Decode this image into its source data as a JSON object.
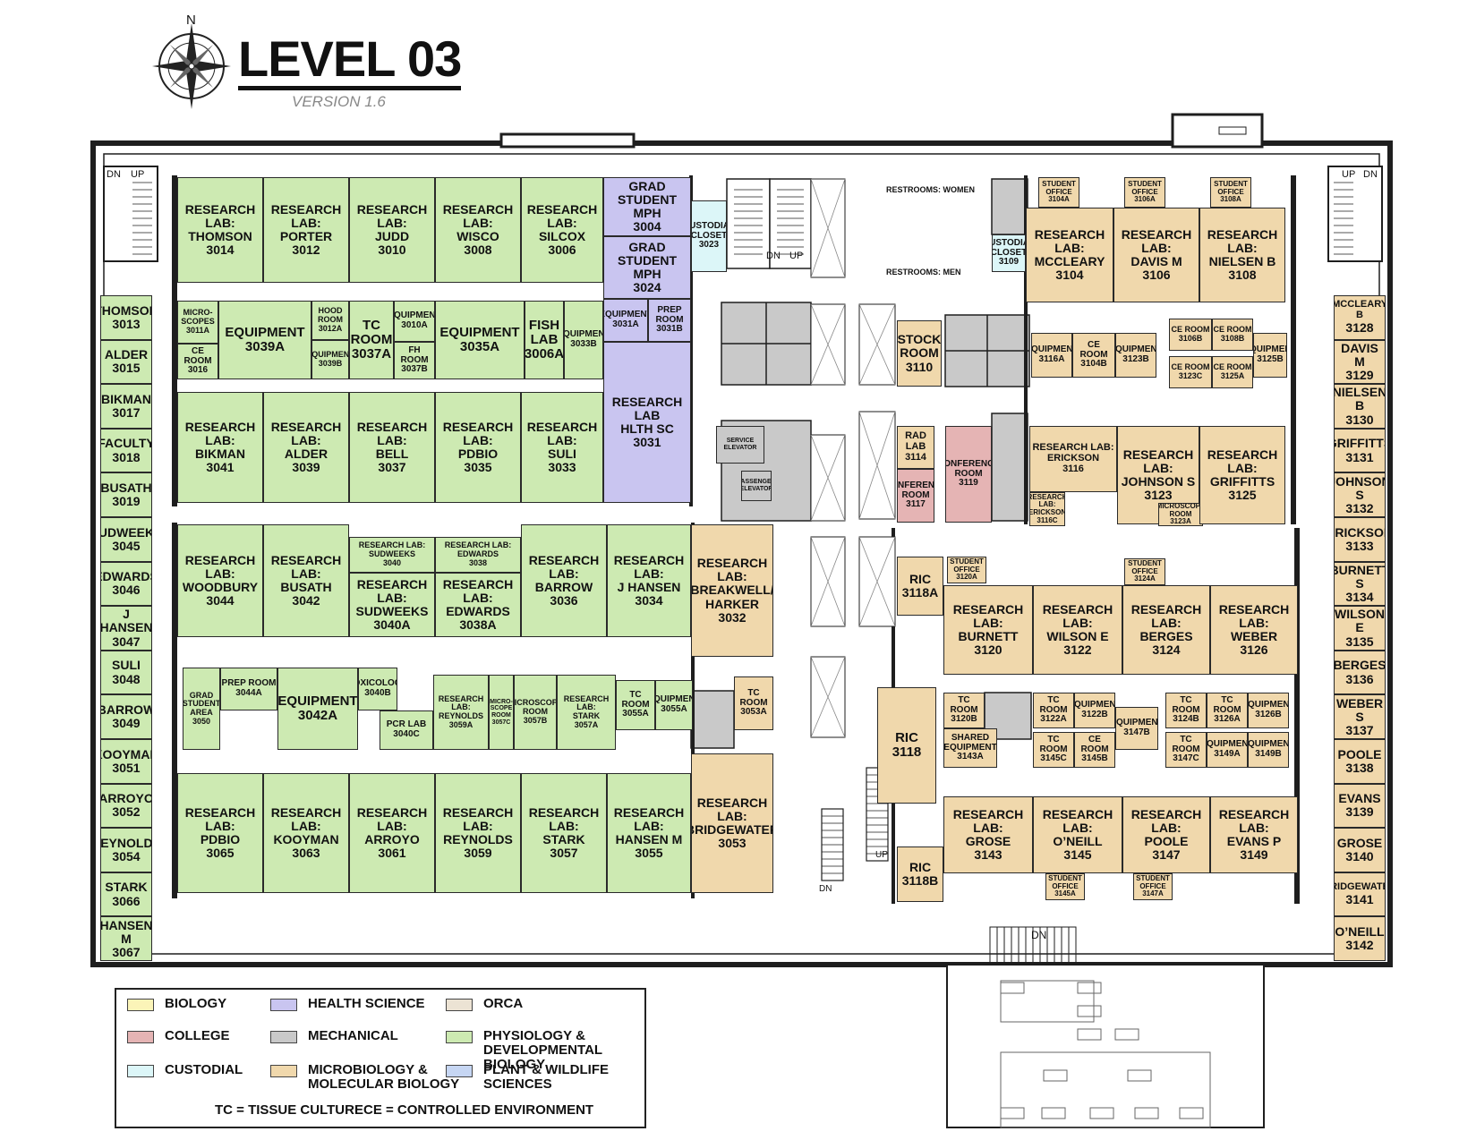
{
  "map": {
    "title": "LEVEL 03",
    "version": "VERSION 1.6",
    "north": "N"
  },
  "colors": {
    "physiology": "#cdeab2",
    "health_science": "#c9c5f0",
    "microbiology": "#f0d8ac",
    "college": "#e5b4b4",
    "mechanical": "#c9c9c9",
    "custodial": "#dcf6f8",
    "biology": "#fbf4b8",
    "orca": "#ece3d4",
    "plant": "#c6d6f3",
    "wall": "#1e1e1e",
    "corridor": "#ffffff"
  },
  "rooms": [
    {
      "id": "r3014",
      "lines": [
        "RESEARCH LAB:",
        "THOMSON",
        "3014"
      ],
      "c": "physiology"
    },
    {
      "id": "r3012",
      "lines": [
        "RESEARCH LAB:",
        "PORTER",
        "3012"
      ],
      "c": "physiology"
    },
    {
      "id": "r3010",
      "lines": [
        "RESEARCH LAB:",
        "JUDD",
        "3010"
      ],
      "c": "physiology"
    },
    {
      "id": "r3008",
      "lines": [
        "RESEARCH LAB:",
        "WISCO",
        "3008"
      ],
      "c": "physiology"
    },
    {
      "id": "r3006",
      "lines": [
        "RESEARCH LAB:",
        "SILCOX",
        "3006"
      ],
      "c": "physiology"
    },
    {
      "id": "r3004",
      "lines": [
        "GRAD STUDENT",
        "MPH",
        "3004"
      ],
      "c": "health_science"
    },
    {
      "id": "r3024",
      "lines": [
        "GRAD STUDENT",
        "MPH",
        "3024"
      ],
      "c": "health_science"
    },
    {
      "id": "r3023",
      "lines": [
        "CUSTODIAL",
        "CLOSET",
        "3023"
      ],
      "c": "custodial"
    },
    {
      "id": "r3011a",
      "lines": [
        "MICRO-",
        "SCOPES",
        "3011A"
      ],
      "c": "physiology"
    },
    {
      "id": "r3016",
      "lines": [
        "CE ROOM",
        "3016"
      ],
      "c": "physiology"
    },
    {
      "id": "r3039a",
      "lines": [
        "EQUIPMENT",
        "3039A"
      ],
      "c": "physiology"
    },
    {
      "id": "r3012a",
      "lines": [
        "HOOD",
        "ROOM",
        "3012A"
      ],
      "c": "physiology"
    },
    {
      "id": "r3039b",
      "lines": [
        "EQUIPMENT",
        "3039B"
      ],
      "c": "physiology"
    },
    {
      "id": "r3037a",
      "lines": [
        "TC",
        "ROOM",
        "3037A"
      ],
      "c": "physiology"
    },
    {
      "id": "r3010a",
      "lines": [
        "EQUIPMENT",
        "3010A"
      ],
      "c": "physiology"
    },
    {
      "id": "r3037b",
      "lines": [
        "FH ROOM",
        "3037B"
      ],
      "c": "physiology"
    },
    {
      "id": "r3035a",
      "lines": [
        "EQUIPMENT",
        "3035A"
      ],
      "c": "physiology"
    },
    {
      "id": "r3006a",
      "lines": [
        "FISH",
        "LAB",
        "3006A"
      ],
      "c": "physiology"
    },
    {
      "id": "r3033b",
      "lines": [
        "EQUIPMENT",
        "3033B"
      ],
      "c": "physiology"
    },
    {
      "id": "r3031a",
      "lines": [
        "EQUIPMENT",
        "3031A"
      ],
      "c": "health_science"
    },
    {
      "id": "r3031b",
      "lines": [
        "PREP ROOM",
        "3031B"
      ],
      "c": "health_science"
    },
    {
      "id": "r3031",
      "lines": [
        "RESEARCH LAB",
        "HLTH SC",
        "3031"
      ],
      "c": "health_science"
    },
    {
      "id": "r3041",
      "lines": [
        "RESEARCH LAB:",
        "BIKMAN",
        "3041"
      ],
      "c": "physiology"
    },
    {
      "id": "r3039",
      "lines": [
        "RESEARCH LAB:",
        "ALDER",
        "3039"
      ],
      "c": "physiology"
    },
    {
      "id": "r3037",
      "lines": [
        "RESEARCH LAB:",
        "BELL",
        "3037"
      ],
      "c": "physiology"
    },
    {
      "id": "r3035",
      "lines": [
        "RESEARCH LAB:",
        "PDBIO",
        "3035"
      ],
      "c": "physiology"
    },
    {
      "id": "r3033",
      "lines": [
        "RESEARCH LAB:",
        "SULI",
        "3033"
      ],
      "c": "physiology"
    },
    {
      "id": "svc_elev",
      "lines": [
        "SERVICE",
        "ELEVATOR"
      ],
      "c": "mechanical"
    },
    {
      "id": "pass_elev",
      "lines": [
        "PASSENGER",
        "ELEVATOR"
      ],
      "c": "mechanical"
    },
    {
      "id": "r3044",
      "lines": [
        "RESEARCH LAB:",
        "WOODBURY",
        "3044"
      ],
      "c": "physiology"
    },
    {
      "id": "r3042",
      "lines": [
        "RESEARCH LAB:",
        "BUSATH",
        "3042"
      ],
      "c": "physiology"
    },
    {
      "id": "r3040",
      "lines": [
        "RESEARCH LAB:",
        "SUDWEEKS",
        "3040"
      ],
      "c": "physiology"
    },
    {
      "id": "r3038",
      "lines": [
        "RESEARCH LAB:",
        "EDWARDS",
        "3038"
      ],
      "c": "physiology"
    },
    {
      "id": "r3040a",
      "lines": [
        "RESEARCH LAB:",
        "SUDWEEKS",
        "3040A"
      ],
      "c": "physiology"
    },
    {
      "id": "r3038a",
      "lines": [
        "RESEARCH LAB:",
        "EDWARDS",
        "3038A"
      ],
      "c": "physiology"
    },
    {
      "id": "r3036",
      "lines": [
        "RESEARCH LAB:",
        "BARROW",
        "3036"
      ],
      "c": "physiology"
    },
    {
      "id": "r3034",
      "lines": [
        "RESEARCH LAB:",
        "J HANSEN",
        "3034"
      ],
      "c": "physiology"
    },
    {
      "id": "r3032",
      "lines": [
        "RESEARCH LAB:",
        "BREAKWELL/",
        "HARKER",
        "3032"
      ],
      "c": "microbiology"
    },
    {
      "id": "r3050",
      "lines": [
        "GRAD",
        "STUDENT",
        "AREA",
        "3050"
      ],
      "c": "physiology"
    },
    {
      "id": "r3044a",
      "lines": [
        "PREP ROOM",
        "3044A"
      ],
      "c": "physiology"
    },
    {
      "id": "r3042a",
      "lines": [
        "EQUIPMENT",
        "3042A"
      ],
      "c": "physiology"
    },
    {
      "id": "r3040b",
      "lines": [
        "TOXICOLOGY",
        "3040B"
      ],
      "c": "physiology"
    },
    {
      "id": "r3040c",
      "lines": [
        "PCR LAB",
        "3040C"
      ],
      "c": "physiology"
    },
    {
      "id": "r3059a",
      "lines": [
        "RESEARCH LAB:",
        "REYNOLDS",
        "3059A"
      ],
      "c": "physiology"
    },
    {
      "id": "r3057c",
      "lines": [
        "MICRO-",
        "SCOPE",
        "ROOM",
        "3057C"
      ],
      "c": "physiology"
    },
    {
      "id": "r3057b",
      "lines": [
        "MICROSCOPE",
        "ROOM",
        "3057B"
      ],
      "c": "physiology"
    },
    {
      "id": "r3057a",
      "lines": [
        "RESEARCH LAB:",
        "STARK",
        "3057A"
      ],
      "c": "physiology"
    },
    {
      "id": "r3055a1",
      "lines": [
        "TC ROOM",
        "3055A"
      ],
      "c": "physiology"
    },
    {
      "id": "r3055a2",
      "lines": [
        "EQUIPMENT",
        "3055A"
      ],
      "c": "physiology"
    },
    {
      "id": "r3053a",
      "lines": [
        "TC ROOM",
        "3053A"
      ],
      "c": "microbiology"
    },
    {
      "id": "r3065",
      "lines": [
        "RESEARCH LAB:",
        "PDBIO",
        "3065"
      ],
      "c": "physiology"
    },
    {
      "id": "r3063",
      "lines": [
        "RESEARCH LAB:",
        "KOOYMAN",
        "3063"
      ],
      "c": "physiology"
    },
    {
      "id": "r3061",
      "lines": [
        "RESEARCH LAB:",
        "ARROYO",
        "3061"
      ],
      "c": "physiology"
    },
    {
      "id": "r3059",
      "lines": [
        "RESEARCH LAB:",
        "REYNOLDS",
        "3059"
      ],
      "c": "physiology"
    },
    {
      "id": "r3057",
      "lines": [
        "RESEARCH LAB:",
        "STARK",
        "3057"
      ],
      "c": "physiology"
    },
    {
      "id": "r3055",
      "lines": [
        "RESEARCH LAB:",
        "HANSEN M",
        "3055"
      ],
      "c": "physiology"
    },
    {
      "id": "r3053",
      "lines": [
        "RESEARCH LAB:",
        "BRIDGEWATER",
        "3053"
      ],
      "c": "microbiology"
    },
    {
      "id": "rest_women",
      "lines": [
        "RESTROOMS: WOMEN"
      ],
      "c": "corridor"
    },
    {
      "id": "rest_men",
      "lines": [
        "RESTROOMS: MEN"
      ],
      "c": "corridor"
    },
    {
      "id": "r3109",
      "lines": [
        "CUSTODIAL",
        "CLOSET",
        "3109"
      ],
      "c": "custodial"
    },
    {
      "id": "r3104a",
      "lines": [
        "STUDENT",
        "OFFICE",
        "3104A"
      ],
      "c": "microbiology"
    },
    {
      "id": "r3106a",
      "lines": [
        "STUDENT",
        "OFFICE",
        "3106A"
      ],
      "c": "microbiology"
    },
    {
      "id": "r3108a",
      "lines": [
        "STUDENT",
        "OFFICE",
        "3108A"
      ],
      "c": "microbiology"
    },
    {
      "id": "r3104",
      "lines": [
        "RESEARCH LAB:",
        "MCCLEARY",
        "3104"
      ],
      "c": "microbiology"
    },
    {
      "id": "r3106",
      "lines": [
        "RESEARCH LAB:",
        "DAVIS M",
        "3106"
      ],
      "c": "microbiology"
    },
    {
      "id": "r3108",
      "lines": [
        "RESEARCH LAB:",
        "NIELSEN B",
        "3108"
      ],
      "c": "microbiology"
    },
    {
      "id": "r3110",
      "lines": [
        "STOCK",
        "ROOM",
        "3110"
      ],
      "c": "microbiology"
    },
    {
      "id": "r3116a",
      "lines": [
        "EQUIPMENT",
        "3116A"
      ],
      "c": "microbiology"
    },
    {
      "id": "r3104b",
      "lines": [
        "CE ROOM",
        "3104B"
      ],
      "c": "microbiology"
    },
    {
      "id": "r3123b",
      "lines": [
        "EQUIPMENT",
        "3123B"
      ],
      "c": "microbiology"
    },
    {
      "id": "r3106b",
      "lines": [
        "CE ROOM",
        "3106B"
      ],
      "c": "microbiology"
    },
    {
      "id": "r3108b",
      "lines": [
        "CE ROOM",
        "3108B"
      ],
      "c": "microbiology"
    },
    {
      "id": "r3123c",
      "lines": [
        "CE ROOM",
        "3123C"
      ],
      "c": "microbiology"
    },
    {
      "id": "r3125a",
      "lines": [
        "CE ROOM",
        "3125A"
      ],
      "c": "microbiology"
    },
    {
      "id": "r3125b",
      "lines": [
        "EQUIPMENT",
        "3125B"
      ],
      "c": "microbiology"
    },
    {
      "id": "r3114",
      "lines": [
        "RAD LAB",
        "3114"
      ],
      "c": "microbiology"
    },
    {
      "id": "r3117",
      "lines": [
        "CONFERENCE",
        "ROOM",
        "3117"
      ],
      "c": "college"
    },
    {
      "id": "r3119",
      "lines": [
        "CONFERENCE",
        "ROOM",
        "3119"
      ],
      "c": "college"
    },
    {
      "id": "r3116",
      "lines": [
        "RESEARCH LAB:",
        "ERICKSON",
        "3116"
      ],
      "c": "microbiology"
    },
    {
      "id": "r3116c",
      "lines": [
        "RESEARCH LAB:",
        "ERICKSON",
        "3116C"
      ],
      "c": "microbiology"
    },
    {
      "id": "r3123",
      "lines": [
        "RESEARCH LAB:",
        "JOHNSON S",
        "3123"
      ],
      "c": "microbiology"
    },
    {
      "id": "r3123a",
      "lines": [
        "MICROSCOPE",
        "ROOM",
        "3123A"
      ],
      "c": "microbiology"
    },
    {
      "id": "r3125",
      "lines": [
        "RESEARCH LAB:",
        "GRIFFITTS",
        "3125"
      ],
      "c": "microbiology"
    },
    {
      "id": "r3118a",
      "lines": [
        "RIC",
        "3118A"
      ],
      "c": "microbiology"
    },
    {
      "id": "r3120a",
      "lines": [
        "STUDENT",
        "OFFICE",
        "3120A"
      ],
      "c": "microbiology"
    },
    {
      "id": "r3124a",
      "lines": [
        "STUDENT",
        "OFFICE",
        "3124A"
      ],
      "c": "microbiology"
    },
    {
      "id": "r3120",
      "lines": [
        "RESEARCH LAB:",
        "BURNETT",
        "3120"
      ],
      "c": "microbiology"
    },
    {
      "id": "r3122",
      "lines": [
        "RESEARCH LAB:",
        "WILSON E",
        "3122"
      ],
      "c": "microbiology"
    },
    {
      "id": "r3124",
      "lines": [
        "RESEARCH LAB:",
        "BERGES",
        "3124"
      ],
      "c": "microbiology"
    },
    {
      "id": "r3126",
      "lines": [
        "RESEARCH LAB:",
        "WEBER",
        "3126"
      ],
      "c": "microbiology"
    },
    {
      "id": "r3118",
      "lines": [
        "RIC",
        "3118"
      ],
      "c": "microbiology"
    },
    {
      "id": "r3120b",
      "lines": [
        "TC ROOM",
        "3120B"
      ],
      "c": "microbiology"
    },
    {
      "id": "r3143a",
      "lines": [
        "SHARED",
        "EQUIPMENT",
        "3143A"
      ],
      "c": "microbiology"
    },
    {
      "id": "r3122a",
      "lines": [
        "TC ROOM",
        "3122A"
      ],
      "c": "microbiology"
    },
    {
      "id": "r3122b",
      "lines": [
        "EQUIPMENT",
        "3122B"
      ],
      "c": "microbiology"
    },
    {
      "id": "r3147b",
      "lines": [
        "EQUIPMENT",
        "3147B"
      ],
      "c": "microbiology"
    },
    {
      "id": "r3124b",
      "lines": [
        "TC ROOM",
        "3124B"
      ],
      "c": "microbiology"
    },
    {
      "id": "r3126a",
      "lines": [
        "TC ROOM",
        "3126A"
      ],
      "c": "microbiology"
    },
    {
      "id": "r3126b",
      "lines": [
        "EQUIPMENT",
        "3126B"
      ],
      "c": "microbiology"
    },
    {
      "id": "r3145c",
      "lines": [
        "TC ROOM",
        "3145C"
      ],
      "c": "microbiology"
    },
    {
      "id": "r3145b",
      "lines": [
        "CE ROOM",
        "3145B"
      ],
      "c": "microbiology"
    },
    {
      "id": "r3147c",
      "lines": [
        "TC ROOM",
        "3147C"
      ],
      "c": "microbiology"
    },
    {
      "id": "r3149a",
      "lines": [
        "EQUIPMENT",
        "3149A"
      ],
      "c": "microbiology"
    },
    {
      "id": "r3149b",
      "lines": [
        "EQUIPMENT",
        "3149B"
      ],
      "c": "microbiology"
    },
    {
      "id": "r3143",
      "lines": [
        "RESEARCH LAB:",
        "GROSE",
        "3143"
      ],
      "c": "microbiology"
    },
    {
      "id": "r3145",
      "lines": [
        "RESEARCH LAB:",
        "O’NEILL",
        "3145"
      ],
      "c": "microbiology"
    },
    {
      "id": "r3147",
      "lines": [
        "RESEARCH LAB:",
        "POOLE",
        "3147"
      ],
      "c": "microbiology"
    },
    {
      "id": "r3149",
      "lines": [
        "RESEARCH LAB:",
        "EVANS P",
        "3149"
      ],
      "c": "microbiology"
    },
    {
      "id": "r3145a",
      "lines": [
        "STUDENT",
        "OFFICE",
        "3145A"
      ],
      "c": "microbiology"
    },
    {
      "id": "r3147a",
      "lines": [
        "STUDENT",
        "OFFICE",
        "3147A"
      ],
      "c": "microbiology"
    },
    {
      "id": "r3118b",
      "lines": [
        "RIC",
        "3118B"
      ],
      "c": "microbiology"
    }
  ],
  "west_offices": [
    {
      "name": "THOMSON",
      "num": "3013"
    },
    {
      "name": "ALDER",
      "num": "3015"
    },
    {
      "name": "BIKMAN",
      "num": "3017"
    },
    {
      "name": "FACULTY",
      "num": "3018"
    },
    {
      "name": "BUSATH",
      "num": "3019"
    },
    {
      "name": "SUDWEEKS",
      "num": "3045"
    },
    {
      "name": "EDWARDS",
      "num": "3046"
    },
    {
      "name": "J HANSEN",
      "num": "3047"
    },
    {
      "name": "SULI",
      "num": "3048"
    },
    {
      "name": "BARROW",
      "num": "3049"
    },
    {
      "name": "KOOYMAN",
      "num": "3051"
    },
    {
      "name": "ARROYO",
      "num": "3052"
    },
    {
      "name": "REYNOLDS",
      "num": "3054"
    },
    {
      "name": "STARK",
      "num": "3066"
    },
    {
      "name": "HANSEN M",
      "num": "3067"
    }
  ],
  "east_offices": [
    {
      "name": "MCCLEARY B",
      "num": "3128"
    },
    {
      "name": "DAVIS M",
      "num": "3129"
    },
    {
      "name": "NIELSEN B",
      "num": "3130"
    },
    {
      "name": "GRIFFITTS",
      "num": "3131"
    },
    {
      "name": "JOHNSON S",
      "num": "3132"
    },
    {
      "name": "ERICKSON",
      "num": "3133"
    },
    {
      "name": "BURNETT S",
      "num": "3134"
    },
    {
      "name": "WILSON E",
      "num": "3135"
    },
    {
      "name": "BERGES",
      "num": "3136"
    },
    {
      "name": "WEBER S",
      "num": "3137"
    },
    {
      "name": "POOLE",
      "num": "3138"
    },
    {
      "name": "EVANS",
      "num": "3139"
    },
    {
      "name": "GROSE",
      "num": "3140"
    },
    {
      "name": "BRIDGEWATER",
      "num": "3141"
    },
    {
      "name": "O’NEILL",
      "num": "3142"
    }
  ],
  "stair_labels": {
    "west_dn": "DN",
    "west_up": "UP",
    "east_up": "UP",
    "east_dn": "DN",
    "core_dn": "DN",
    "core_up": "UP",
    "south_dn": "DN",
    "sw_dn": "DN",
    "se_up": "UP"
  },
  "legend": {
    "items": [
      {
        "key": "biology",
        "label": "BIOLOGY"
      },
      {
        "key": "health_science",
        "label": "HEALTH SCIENCE"
      },
      {
        "key": "orca",
        "label": "ORCA"
      },
      {
        "key": "college",
        "label": "COLLEGE"
      },
      {
        "key": "mechanical",
        "label": "MECHANICAL"
      },
      {
        "key": "physiology",
        "label": "PHYSIOLOGY &\nDEVELOPMENTAL BIOLOGY"
      },
      {
        "key": "custodial",
        "label": "CUSTODIAL"
      },
      {
        "key": "microbiology",
        "label": "MICROBIOLOGY &\nMOLECULAR BIOLOGY"
      },
      {
        "key": "plant",
        "label": "PLANT & WILDLIFE\nSCIENCES"
      }
    ],
    "note_tc": "TC = TISSUE CULTURE",
    "note_ce": "CE = CONTROLLED ENVIRONMENT"
  }
}
